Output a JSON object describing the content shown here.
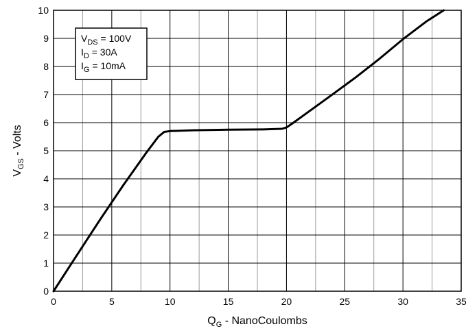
{
  "chart_data": {
    "type": "line",
    "xlabel": {
      "main": "Q",
      "sub": "G",
      "rest": " - NanoCoulombs"
    },
    "ylabel": {
      "main": "V",
      "sub": "GS",
      "rest": " - Volts"
    },
    "xlim": [
      0,
      35
    ],
    "ylim": [
      0,
      10
    ],
    "x_ticks": [
      "0",
      "5",
      "10",
      "15",
      "20",
      "25",
      "30",
      "35"
    ],
    "y_ticks": [
      "0",
      "1",
      "2",
      "3",
      "4",
      "5",
      "6",
      "7",
      "8",
      "9",
      "10"
    ],
    "grid": true,
    "minor_x_grid": true,
    "legend_position": "top-left",
    "conditions": [
      {
        "main": "V",
        "sub": "DS",
        "rest": " = 100V"
      },
      {
        "main": "I",
        "sub": "D",
        "rest": " = 30A"
      },
      {
        "main": "I",
        "sub": "G",
        "rest": " = 10mA"
      }
    ],
    "series": [
      {
        "color": "#000000",
        "x": [
          0,
          2,
          4,
          6,
          8,
          9,
          9.5,
          10,
          12,
          15,
          18,
          19.6,
          20,
          20.5,
          22,
          24,
          26,
          28,
          30,
          32,
          33.5
        ],
        "y": [
          0,
          1.28,
          2.55,
          3.78,
          4.95,
          5.5,
          5.67,
          5.7,
          5.73,
          5.75,
          5.76,
          5.78,
          5.83,
          5.97,
          6.42,
          7.02,
          7.63,
          8.28,
          8.97,
          9.6,
          10.0
        ]
      }
    ]
  }
}
